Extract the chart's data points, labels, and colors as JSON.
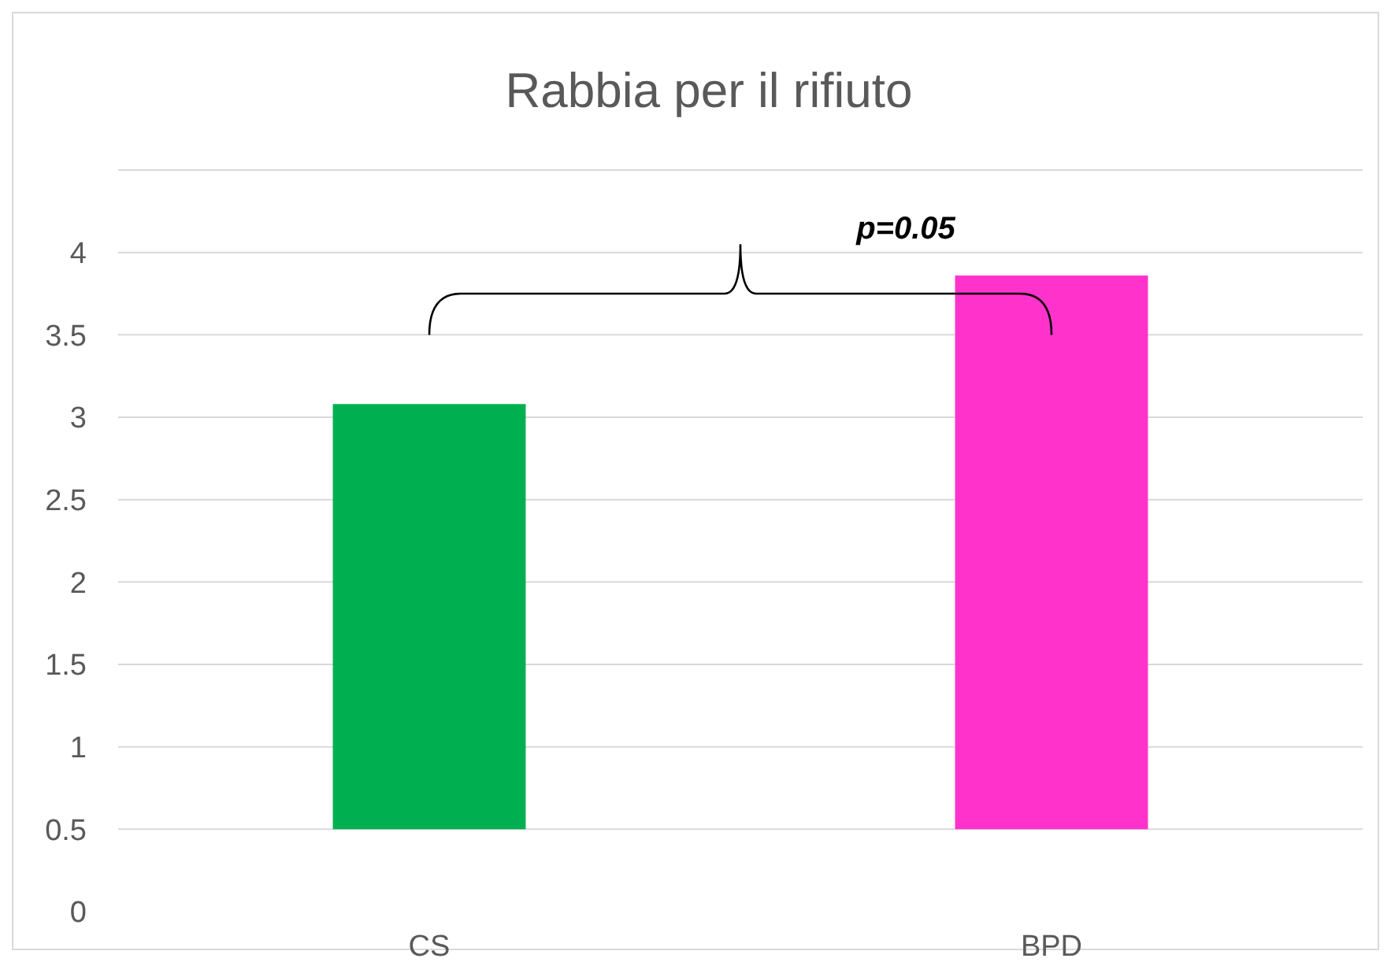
{
  "chart_data": {
    "type": "bar",
    "title": "Rabbia per il rifiuto",
    "categories": [
      "CS",
      "BPD"
    ],
    "values": [
      2.58,
      3.36
    ],
    "base": [
      0.5,
      0.5
    ],
    "colors": [
      "#00b050",
      "#ff33cc"
    ],
    "ylim": [
      0,
      4.5
    ],
    "yticks": [
      0,
      0.5,
      1,
      1.5,
      2,
      2.5,
      3,
      3.5,
      4,
      {
        "value": 4.5,
        "label": null
      }
    ],
    "grid": "y",
    "annotations": [
      "p=0.05"
    ]
  }
}
